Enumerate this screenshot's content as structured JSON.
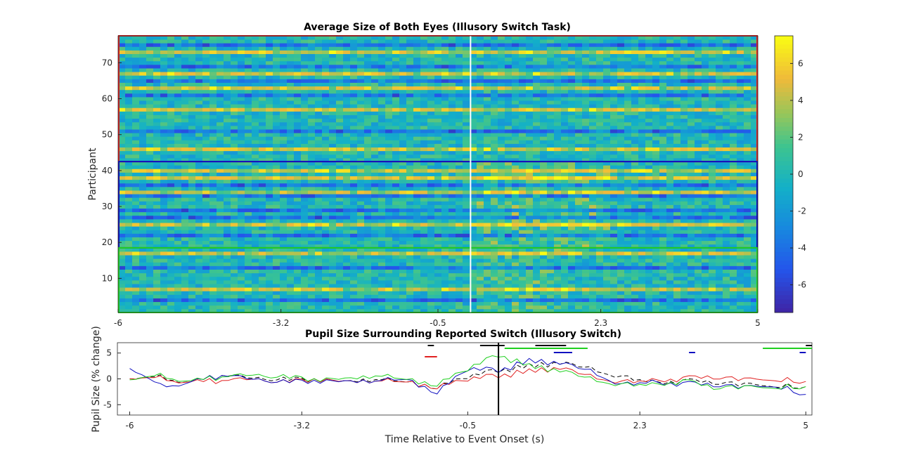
{
  "chart_data": [
    {
      "type": "heatmap",
      "title": "Average Size of Both Eyes (Illusory Switch Task)",
      "xlabel": "",
      "ylabel": "Participant",
      "x_range": [
        -6,
        5
      ],
      "x_ticks": [
        -6,
        -3.2,
        -0.5,
        2.3,
        5
      ],
      "x_tick_labels": [
        "-6",
        "-3.2",
        "-0.5",
        "2.3",
        "5"
      ],
      "y_range": [
        0.5,
        77.5
      ],
      "y_ticks": [
        10,
        20,
        30,
        40,
        50,
        60,
        70
      ],
      "y_tick_labels": [
        "10",
        "20",
        "30",
        "40",
        "50",
        "60",
        "70"
      ],
      "participants": 77,
      "time_bins": 91,
      "colormap": "parula",
      "colorbar_range": [
        -7.5,
        7.5
      ],
      "colorbar_ticks": [
        -6,
        -4,
        -2,
        0,
        2,
        4,
        6
      ],
      "colorbar_tick_labels": [
        "-6",
        "-4",
        "-2",
        "0",
        "2",
        "4",
        "6"
      ],
      "event_line": {
        "x": 0,
        "color": "#ffffff"
      },
      "groups": [
        {
          "color": "#e02020",
          "participants": [
            43,
            77
          ]
        },
        {
          "color": "#1010c0",
          "participants": [
            19,
            42
          ]
        },
        {
          "color": "#20d020",
          "participants": [
            1,
            18
          ]
        }
      ],
      "bright_rows": [
        7,
        17,
        25,
        34,
        38,
        40,
        46,
        57,
        63,
        67,
        73
      ],
      "dark_rows": [
        4,
        13,
        22,
        27,
        29,
        33,
        36,
        51,
        61,
        65,
        69,
        75
      ]
    },
    {
      "type": "line",
      "title": "Pupil Size Surrounding Reported Switch (Illusory Switch)",
      "xlabel": "Time Relative to Event Onset (s)",
      "ylabel": "Pupil Size (% change)",
      "xlim": [
        -6.2,
        5.1
      ],
      "ylim": [
        -7,
        7
      ],
      "x_ticks": [
        -6,
        -3.2,
        -0.5,
        2.3,
        5
      ],
      "x_tick_labels": [
        "-6",
        "-3.2",
        "-0.5",
        "2.3",
        "5"
      ],
      "y_ticks": [
        -5,
        0,
        5
      ],
      "y_tick_labels": [
        "-5",
        "0",
        "5"
      ],
      "event_line": {
        "x": 0,
        "color": "#000000"
      },
      "x": [
        -6,
        -5.5,
        -5,
        -4.5,
        -4,
        -3.5,
        -3,
        -2.5,
        -2,
        -1.5,
        -1,
        -0.5,
        0,
        0.5,
        1,
        1.5,
        2,
        2.5,
        3,
        3.5,
        4,
        4.5,
        5
      ],
      "series": [
        {
          "color": "#000000",
          "dash": true,
          "values": [
            0.5,
            0.2,
            -0.5,
            0.5,
            0.2,
            0,
            -0.5,
            0,
            -0.2,
            -0.5,
            -1.5,
            0.5,
            1.5,
            2.5,
            3,
            2,
            0.5,
            -0.5,
            -0.5,
            -0.5,
            -1,
            -1.2,
            -1.5
          ]
        },
        {
          "color": "#e02020",
          "dash": false,
          "values": [
            0.5,
            0,
            -0.5,
            -0.5,
            0,
            -0.5,
            -0.5,
            0,
            -0.5,
            -0.5,
            -1.5,
            0,
            0.5,
            1.5,
            2,
            0.5,
            -0.5,
            -0.2,
            0,
            0.5,
            0,
            0,
            -0.5
          ]
        },
        {
          "color": "#1010c0",
          "dash": false,
          "values": [
            2.5,
            -1.5,
            -0.5,
            0.5,
            0,
            -0.5,
            -0.8,
            0,
            -0.5,
            0,
            -2.5,
            2,
            1.5,
            3.5,
            3,
            1.5,
            -1,
            -0.5,
            -1,
            -1,
            -1.5,
            -1.2,
            -3
          ]
        },
        {
          "color": "#20d020",
          "dash": false,
          "values": [
            0.3,
            0.5,
            -0.3,
            0.2,
            0.8,
            0.5,
            -0.5,
            0.5,
            0.5,
            0,
            -1,
            2,
            4.5,
            2.5,
            1.5,
            0,
            -1,
            -1,
            -0.5,
            -1.5,
            -1.5,
            -1.5,
            -1.5
          ]
        }
      ],
      "significance_bars": [
        {
          "color": "#000000",
          "ranges": [
            [
              -1.15,
              -1.05
            ],
            [
              -0.3,
              0.1
            ],
            [
              0.6,
              1.1
            ],
            [
              5.0,
              5.1
            ]
          ]
        },
        {
          "color": "#e02020",
          "ranges": [
            [
              -1.2,
              -1.0
            ]
          ]
        },
        {
          "color": "#20d020",
          "ranges": [
            [
              0.1,
              0.6
            ],
            [
              0.6,
              1.2
            ],
            [
              1.2,
              1.45
            ],
            [
              4.3,
              5.1
            ]
          ]
        },
        {
          "color": "#1010c0",
          "ranges": [
            [
              0.9,
              1.2
            ],
            [
              3.1,
              3.2
            ],
            [
              4.9,
              5.0
            ]
          ]
        }
      ]
    }
  ]
}
